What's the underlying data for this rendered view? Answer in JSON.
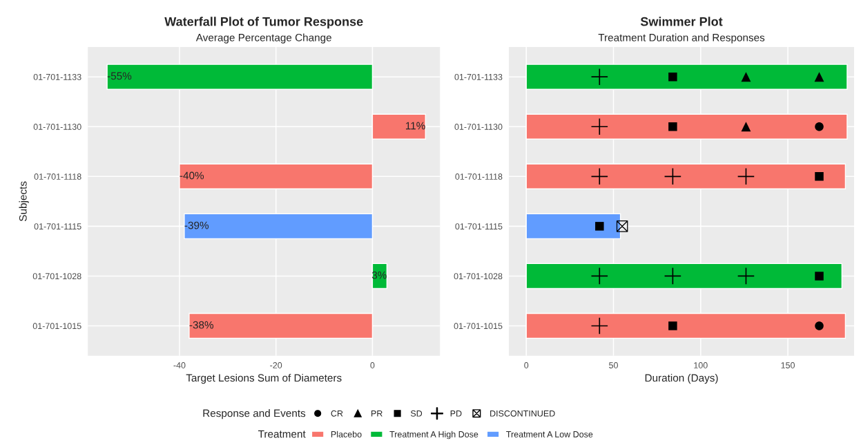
{
  "chart_data": [
    {
      "type": "bar",
      "orientation": "horizontal",
      "title": "Waterfall Plot of Tumor Response",
      "subtitle": "Average Percentage Change",
      "xlabel": "Target Lesions Sum of Diameters",
      "ylabel": "Subjects",
      "categories": [
        "01-701-1133",
        "01-701-1130",
        "01-701-1118",
        "01-701-1115",
        "01-701-1028",
        "01-701-1015"
      ],
      "series": [
        {
          "name": "Placebo",
          "color": "#f8766d",
          "values": [
            null,
            11,
            -40,
            null,
            null,
            -38
          ],
          "value_labels": [
            null,
            "11%",
            "-40%",
            null,
            null,
            "-38%"
          ]
        },
        {
          "name": "Treatment A High Dose",
          "color": "#00ba38",
          "values": [
            -55,
            null,
            null,
            null,
            3,
            null
          ],
          "value_labels": [
            "-55%",
            null,
            null,
            null,
            "3%",
            null
          ]
        },
        {
          "name": "Treatment A Low Dose",
          "color": "#619cff",
          "values": [
            null,
            null,
            null,
            -39,
            null,
            null
          ],
          "value_labels": [
            null,
            null,
            null,
            "-39%",
            null,
            null
          ]
        }
      ],
      "xlim": [
        -59,
        14
      ],
      "xticks": [
        -40,
        -20,
        0
      ],
      "grid": true,
      "legend": "bottom",
      "legend_title": "Treatment"
    },
    {
      "type": "bar",
      "orientation": "horizontal",
      "title": "Swimmer Plot",
      "subtitle": "Treatment Duration and Responses",
      "xlabel": "Duration (Days)",
      "categories": [
        "01-701-1133",
        "01-701-1130",
        "01-701-1118",
        "01-701-1115",
        "01-701-1028",
        "01-701-1015"
      ],
      "series": [
        {
          "color": "#f8766d",
          "values": [
            null,
            184,
            183,
            null,
            null,
            183
          ]
        },
        {
          "color": "#00ba38",
          "values": [
            184,
            null,
            null,
            null,
            181,
            null
          ]
        },
        {
          "color": "#619cff",
          "values": [
            null,
            null,
            null,
            54,
            null,
            null
          ]
        },
        {
          "type": "scatter",
          "name": "CR",
          "color": "#000000",
          "marker": "circle",
          "values": [
            null,
            168,
            null,
            null,
            null,
            168
          ]
        },
        {
          "type": "scatter",
          "name": "PR",
          "color": "#000000",
          "marker": "triangle",
          "values": [
            126,
            126,
            null,
            null,
            null,
            null
          ]
        },
        {
          "type": "scatter",
          "color": "#000000",
          "marker": "triangle",
          "values": [
            168,
            null,
            null,
            null,
            null,
            null
          ]
        },
        {
          "type": "scatter",
          "name": "SD",
          "color": "#000000",
          "marker": "square",
          "values": [
            84,
            84,
            168,
            42,
            168,
            84
          ]
        },
        {
          "type": "scatter",
          "name": "PD",
          "color": "#000000",
          "marker": "cross",
          "values": [
            42,
            42,
            42,
            null,
            42,
            42
          ]
        },
        {
          "type": "scatter",
          "color": "#000000",
          "marker": "cross",
          "values": [
            null,
            null,
            84,
            null,
            84,
            null
          ]
        },
        {
          "type": "scatter",
          "color": "#000000",
          "marker": "cross",
          "values": [
            null,
            null,
            126,
            null,
            126,
            null
          ]
        },
        {
          "type": "scatter",
          "name": "DISCONTINUED",
          "color": "#000000",
          "values": [
            null,
            null,
            null,
            55,
            null,
            null
          ]
        }
      ],
      "xlim": [
        -10,
        188
      ],
      "xticks": [
        0,
        50,
        100,
        150
      ],
      "grid": true,
      "legend": "bottom",
      "legend_title": "Response and Events"
    }
  ]
}
